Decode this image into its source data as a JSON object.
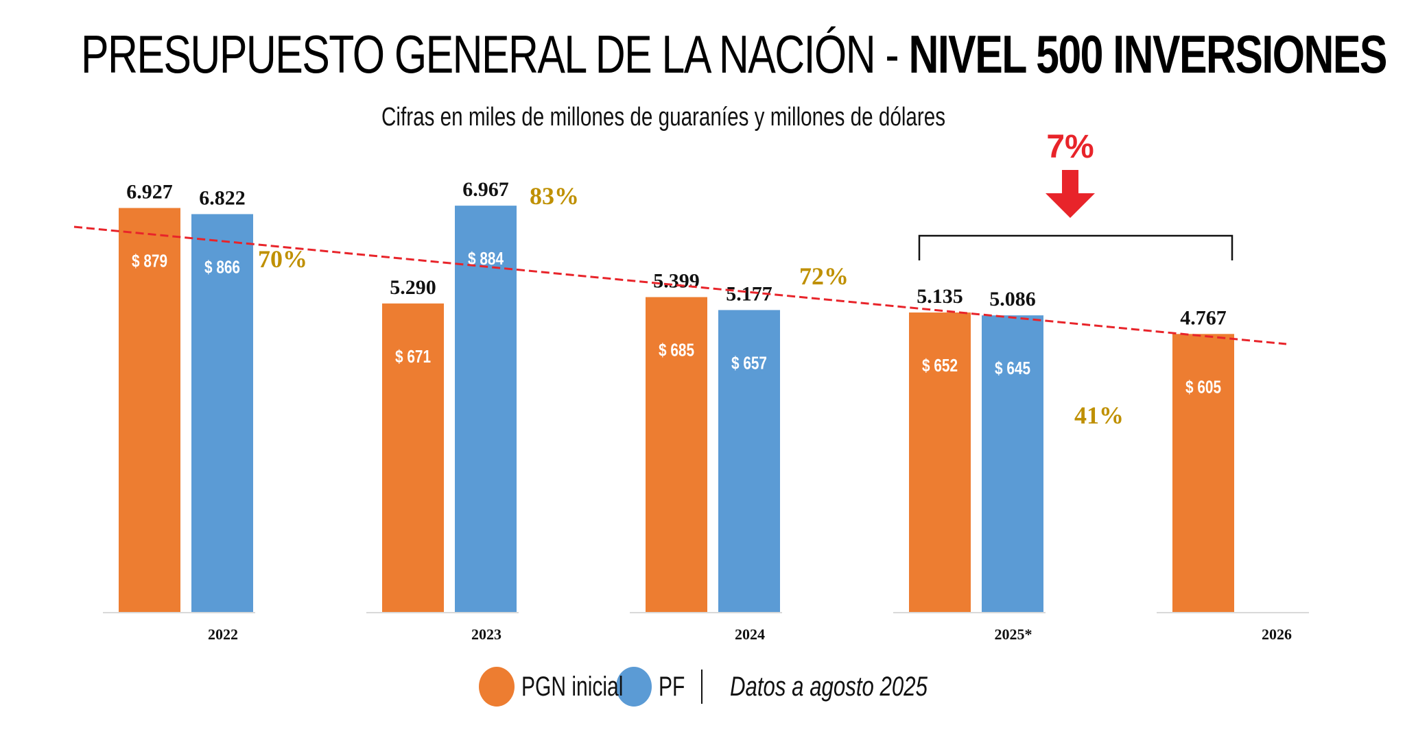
{
  "header": {
    "title_light": "PRESUPUESTO GENERAL DE LA NACIÓN - ",
    "title_bold": "NIVEL 500 INVERSIONES",
    "subtitle": "Cifras en miles de millones de guaraníes y millones de dólares"
  },
  "legend": {
    "items": [
      {
        "label": "PGN inicial",
        "color": "#ED7D31"
      },
      {
        "label": "PF",
        "color": "#5B9BD5"
      }
    ],
    "note": "Datos a agosto 2025"
  },
  "colors": {
    "pgn": "#ED7D31",
    "pf": "#5B9BD5",
    "execution_pct": "#BF9000",
    "trend": "#E8242A",
    "arrow": "#E8242A"
  },
  "chart_data": {
    "type": "bar",
    "title": "PRESUPUESTO GENERAL DE LA NACIÓN - NIVEL 500 INVERSIONES",
    "subtitle": "Cifras en miles de millones de guaraníes y millones de dólares",
    "xlabel": "",
    "ylabel": "",
    "ylim": [
      0,
      7.5
    ],
    "grid": false,
    "legend_position": "bottom",
    "categories": [
      "2022",
      "2023",
      "2024",
      "2025*",
      "2026"
    ],
    "series": [
      {
        "name": "PGN inicial",
        "values": [
          6.927,
          5.29,
          5.399,
          5.135,
          4.767
        ],
        "value_labels": [
          "6.927",
          "5.290",
          "5.399",
          "5.135",
          "4.767"
        ],
        "usd_labels": [
          "$ 879",
          "$ 671",
          "$ 685",
          "$ 652",
          "$ 605"
        ]
      },
      {
        "name": "PF",
        "values": [
          6.822,
          6.967,
          5.177,
          5.086,
          null
        ],
        "value_labels": [
          "6.822",
          "6.967",
          "5.177",
          "5.086",
          ""
        ],
        "usd_labels": [
          "$ 866",
          "$ 884",
          "$ 657",
          "$ 645",
          ""
        ]
      }
    ],
    "execution_percentages": [
      {
        "category": "2022",
        "label": "70%"
      },
      {
        "category": "2023",
        "label": "83%"
      },
      {
        "category": "2024",
        "label": "72%"
      },
      {
        "category": "2025*",
        "label": "41%"
      }
    ],
    "trendline": {
      "style": "dashed",
      "from": {
        "category": "2022",
        "value": 6.8
      },
      "to": {
        "category": "2026",
        "value": 4.5
      }
    },
    "annotation": {
      "label": "7%",
      "direction": "down",
      "between": [
        "2025*",
        "2026"
      ]
    }
  }
}
